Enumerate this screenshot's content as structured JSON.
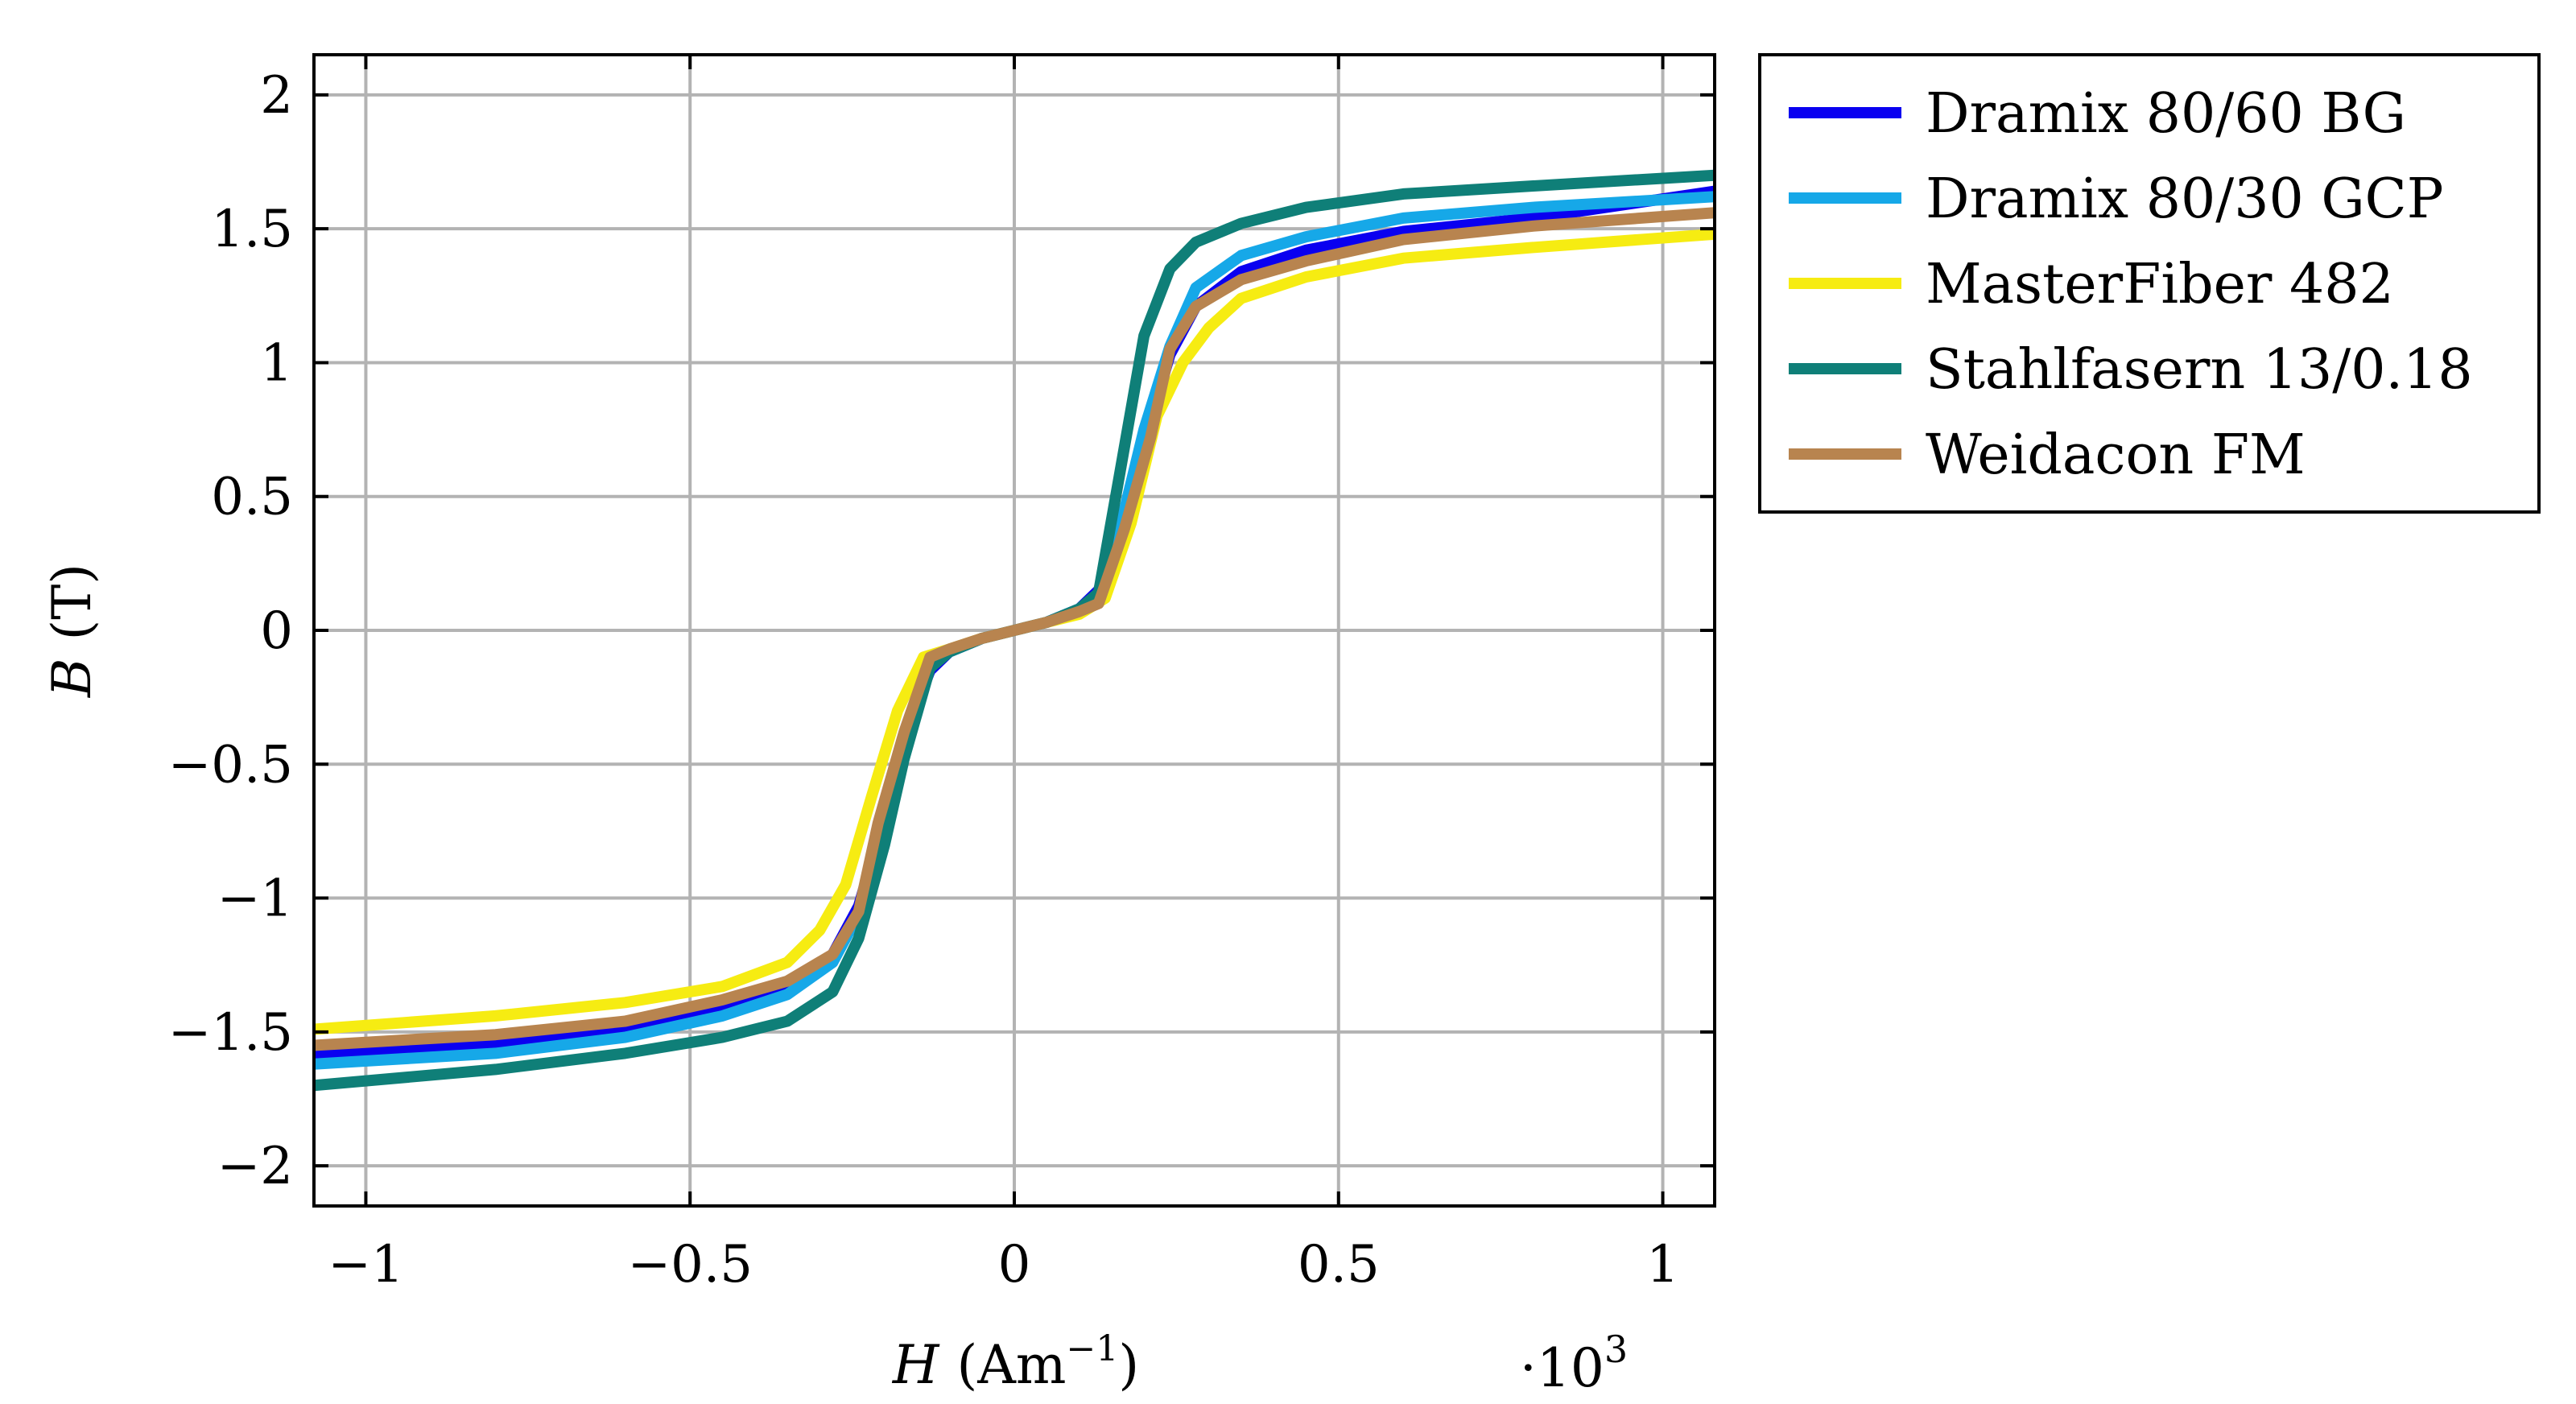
{
  "chart_data": {
    "type": "line",
    "title": "",
    "xlabel": "H (Am⁻¹)",
    "xlabel_parts": {
      "var": "H",
      "unit": "(Am",
      "exp": "−1",
      "close": ")"
    },
    "ylabel": "B (T)",
    "ylabel_parts": {
      "var": "B",
      "unit": "(T)"
    },
    "x_scale_note": "·10³",
    "x_scale_parts": {
      "base": "·10",
      "exp": "3"
    },
    "xlim": [
      -1.08,
      1.08
    ],
    "ylim": [
      -2.15,
      2.15
    ],
    "x_ticks": [
      -1,
      -0.5,
      0,
      0.5,
      1
    ],
    "x_tick_labels": [
      "−1",
      "−0.5",
      "0",
      "0.5",
      "1"
    ],
    "y_ticks": [
      2,
      1.5,
      1,
      0.5,
      0,
      -0.5,
      -1,
      -1.5,
      -2
    ],
    "y_tick_labels": [
      "2",
      "1.5",
      "1",
      "0.5",
      "0",
      "−0.5",
      "−1",
      "−1.5",
      "−2"
    ],
    "grid": true,
    "legend_position": "outside-top-right",
    "series": [
      {
        "name": "Dramix 80/60 BG",
        "color": "#0a00f0",
        "x": [
          -1.08,
          -0.8,
          -0.6,
          -0.45,
          -0.35,
          -0.28,
          -0.24,
          -0.2,
          -0.17,
          -0.13,
          -0.1,
          -0.05,
          0,
          0.05,
          0.1,
          0.13,
          0.17,
          0.2,
          0.24,
          0.28,
          0.35,
          0.45,
          0.6,
          0.8,
          1.08
        ],
        "y": [
          -1.58,
          -1.54,
          -1.49,
          -1.42,
          -1.34,
          -1.21,
          -1.03,
          -0.7,
          -0.4,
          -0.15,
          -0.08,
          -0.03,
          0,
          0.03,
          0.08,
          0.15,
          0.4,
          0.7,
          1.03,
          1.21,
          1.34,
          1.42,
          1.49,
          1.54,
          1.64
        ]
      },
      {
        "name": "Dramix 80/30 GCP",
        "color": "#16a8e8",
        "x": [
          -1.08,
          -0.8,
          -0.6,
          -0.45,
          -0.35,
          -0.28,
          -0.24,
          -0.2,
          -0.17,
          -0.13,
          -0.1,
          -0.05,
          0,
          0.05,
          0.1,
          0.13,
          0.17,
          0.2,
          0.24,
          0.28,
          0.35,
          0.45,
          0.6,
          0.8,
          1.08
        ],
        "y": [
          -1.62,
          -1.58,
          -1.52,
          -1.44,
          -1.36,
          -1.24,
          -1.06,
          -0.75,
          -0.45,
          -0.13,
          -0.08,
          -0.03,
          0,
          0.03,
          0.08,
          0.13,
          0.45,
          0.75,
          1.06,
          1.28,
          1.4,
          1.47,
          1.54,
          1.58,
          1.62
        ]
      },
      {
        "name": "MasterFiber 482",
        "color": "#f6ec12",
        "x": [
          -1.08,
          -0.8,
          -0.6,
          -0.45,
          -0.35,
          -0.3,
          -0.26,
          -0.22,
          -0.18,
          -0.14,
          -0.1,
          -0.05,
          0,
          0.05,
          0.1,
          0.14,
          0.18,
          0.22,
          0.26,
          0.3,
          0.35,
          0.45,
          0.6,
          0.8,
          1.08
        ],
        "y": [
          -1.49,
          -1.44,
          -1.39,
          -1.33,
          -1.24,
          -1.12,
          -0.95,
          -0.62,
          -0.3,
          -0.1,
          -0.07,
          -0.03,
          0,
          0.03,
          0.06,
          0.12,
          0.4,
          0.8,
          1.0,
          1.13,
          1.24,
          1.32,
          1.39,
          1.43,
          1.48
        ]
      },
      {
        "name": "Stahlfasern 13/0.18",
        "color": "#0f7f78",
        "x": [
          -1.08,
          -0.8,
          -0.6,
          -0.45,
          -0.35,
          -0.28,
          -0.24,
          -0.2,
          -0.17,
          -0.13,
          -0.1,
          -0.05,
          0,
          0.05,
          0.1,
          0.13,
          0.16,
          0.2,
          0.24,
          0.28,
          0.35,
          0.45,
          0.6,
          0.8,
          1.08
        ],
        "y": [
          -1.7,
          -1.64,
          -1.58,
          -1.52,
          -1.46,
          -1.35,
          -1.15,
          -0.8,
          -0.48,
          -0.14,
          -0.08,
          -0.03,
          0,
          0.03,
          0.08,
          0.14,
          0.55,
          1.1,
          1.35,
          1.45,
          1.52,
          1.58,
          1.63,
          1.66,
          1.7
        ]
      },
      {
        "name": "Weidacon FM",
        "color": "#b8844f",
        "x": [
          -1.08,
          -0.8,
          -0.6,
          -0.45,
          -0.35,
          -0.28,
          -0.24,
          -0.21,
          -0.17,
          -0.13,
          -0.1,
          -0.05,
          0,
          0.05,
          0.1,
          0.13,
          0.17,
          0.21,
          0.24,
          0.28,
          0.35,
          0.45,
          0.6,
          0.8,
          1.08
        ],
        "y": [
          -1.55,
          -1.51,
          -1.46,
          -1.38,
          -1.31,
          -1.21,
          -1.05,
          -0.72,
          -0.38,
          -0.1,
          -0.07,
          -0.03,
          0,
          0.03,
          0.07,
          0.1,
          0.38,
          0.72,
          1.05,
          1.21,
          1.31,
          1.38,
          1.46,
          1.51,
          1.56
        ]
      }
    ]
  }
}
